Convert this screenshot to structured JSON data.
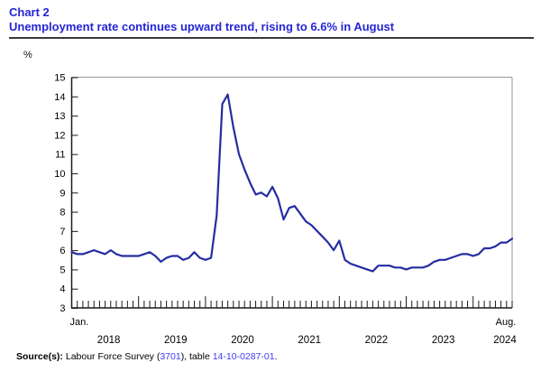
{
  "header": {
    "chart_label": "Chart 2",
    "title": "Unemployment rate continues upward trend, rising to 6.6% in August"
  },
  "chart_data": {
    "type": "line",
    "title": "Unemployment rate continues upward trend, rising to 6.6% in August",
    "unit_label": "%",
    "ylim": [
      3,
      15
    ],
    "y_tick_step": 1,
    "grid": false,
    "legend": "none",
    "x_range": {
      "start": "Jan. 2018",
      "end": "Aug. 2024",
      "frequency": "monthly"
    },
    "x_first_tick_label": "Jan.",
    "x_last_tick_label": "Aug.",
    "year_labels": [
      "2018",
      "2019",
      "2020",
      "2021",
      "2022",
      "2023",
      "2024"
    ],
    "series": [
      {
        "name": "Unemployment rate (%)",
        "values": [
          5.9,
          5.8,
          5.8,
          5.9,
          6.0,
          5.9,
          5.8,
          6.0,
          5.8,
          5.7,
          5.7,
          5.7,
          5.7,
          5.8,
          5.9,
          5.7,
          5.4,
          5.6,
          5.7,
          5.7,
          5.5,
          5.6,
          5.9,
          5.6,
          5.5,
          5.6,
          7.8,
          13.6,
          14.1,
          12.4,
          11.0,
          10.2,
          9.5,
          8.9,
          9.0,
          8.8,
          9.3,
          8.7,
          7.6,
          8.2,
          8.3,
          7.9,
          7.5,
          7.3,
          7.0,
          6.7,
          6.4,
          6.0,
          6.5,
          5.5,
          5.3,
          5.2,
          5.1,
          5.0,
          4.9,
          5.2,
          5.2,
          5.2,
          5.1,
          5.1,
          5.0,
          5.1,
          5.1,
          5.1,
          5.2,
          5.4,
          5.5,
          5.5,
          5.6,
          5.7,
          5.8,
          5.8,
          5.7,
          5.8,
          6.1,
          6.1,
          6.2,
          6.4,
          6.4,
          6.6
        ]
      }
    ]
  },
  "footer": {
    "source_label": "Source(s):",
    "source_text_1": " Labour Force Survey (",
    "source_link_1": "3701",
    "source_text_2": "), table ",
    "source_link_2": "14-10-0287-01",
    "source_text_3": "."
  },
  "colors": {
    "title": "#2525d6",
    "link": "#3d3df2",
    "line": "#252da0",
    "axis": "#1a1a1a",
    "frame_gray": "#999999",
    "text": "#000000"
  }
}
